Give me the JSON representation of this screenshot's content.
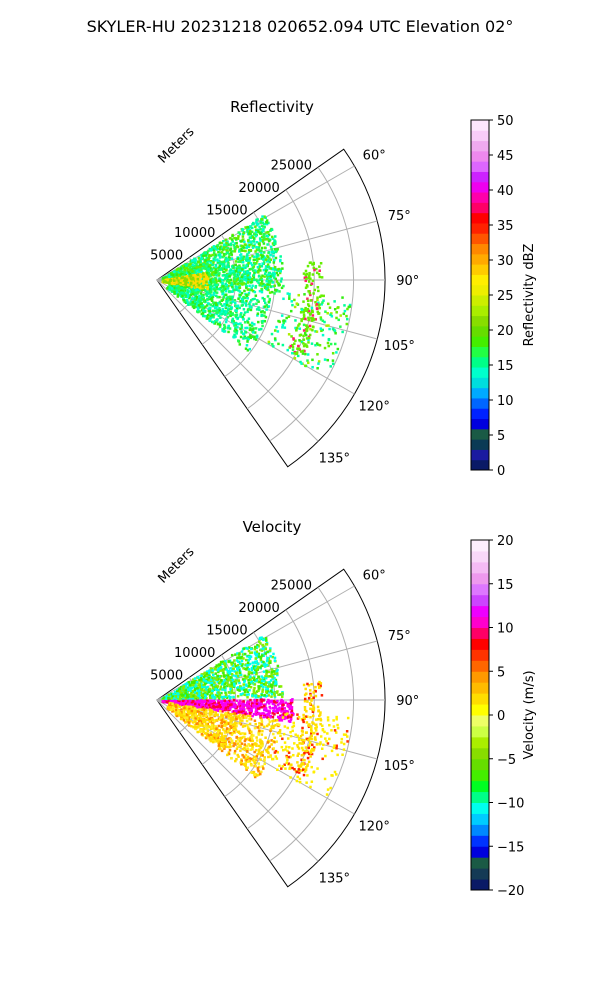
{
  "suptitle": "SKYLER-HU  20231218  020652.094 UTC Elevation 02°",
  "chart_data": [
    {
      "type": "heatmap",
      "projection": "polar-sector",
      "title": "Reflectivity",
      "radial_label": "Meters",
      "radial_ticks": [
        "5000",
        "10000",
        "15000",
        "20000",
        "25000"
      ],
      "radial_values": [
        5000,
        10000,
        15000,
        20000,
        25000
      ],
      "rmax": 29000,
      "azimuth_ticks": [
        "60°",
        "75°",
        "90°",
        "105°",
        "120°",
        "135°"
      ],
      "azimuth_values": [
        60,
        75,
        90,
        105,
        120,
        135
      ],
      "azimuth_range": [
        55,
        145
      ],
      "grid": true,
      "colorbar": {
        "label": "Reflectivity dBZ",
        "ticks": [
          "0",
          "5",
          "10",
          "15",
          "20",
          "25",
          "30",
          "35",
          "40",
          "45",
          "50"
        ],
        "range": [
          0,
          50
        ],
        "colors": [
          "#0a1a66",
          "#1a1aa0",
          "#0a3a55",
          "#1a5a45",
          "#0000dd",
          "#0022ff",
          "#0066ff",
          "#00aaff",
          "#00dddd",
          "#00ffcc",
          "#00ff88",
          "#22ff44",
          "#44ee00",
          "#66dd00",
          "#88dd00",
          "#aaee00",
          "#ccee00",
          "#eeee00",
          "#ffee00",
          "#ffcc00",
          "#ffaa00",
          "#ff8800",
          "#ff5500",
          "#ff2200",
          "#ff0000",
          "#ff0066",
          "#ff00aa",
          "#ee00ee",
          "#cc22ff",
          "#dd66ff",
          "#ee88ee",
          "#f0aaf0",
          "#f8ccf8",
          "#fde6fd"
        ]
      }
    },
    {
      "type": "heatmap",
      "projection": "polar-sector",
      "title": "Velocity",
      "radial_label": "Meters",
      "radial_ticks": [
        "5000",
        "10000",
        "15000",
        "20000",
        "25000"
      ],
      "radial_values": [
        5000,
        10000,
        15000,
        20000,
        25000
      ],
      "rmax": 29000,
      "azimuth_ticks": [
        "60°",
        "75°",
        "90°",
        "105°",
        "120°",
        "135°"
      ],
      "azimuth_values": [
        60,
        75,
        90,
        105,
        120,
        135
      ],
      "azimuth_range": [
        55,
        145
      ],
      "grid": true,
      "colorbar": {
        "label": "Velocity (m/s)",
        "ticks": [
          "−20",
          "−15",
          "−10",
          "−5",
          "0",
          "5",
          "10",
          "15",
          "20"
        ],
        "range": [
          -20,
          20
        ],
        "colors": [
          "#0a1a66",
          "#153a55",
          "#1a5a45",
          "#0000dd",
          "#0033ff",
          "#0088ff",
          "#00ccff",
          "#00ffee",
          "#00ff88",
          "#00ff22",
          "#44ee00",
          "#66dd00",
          "#88dd00",
          "#aaee00",
          "#ccff44",
          "#eeff66",
          "#ffff00",
          "#ffdd00",
          "#ffbb00",
          "#ff9900",
          "#ff6600",
          "#ff3300",
          "#ff0000",
          "#ff0066",
          "#ff00cc",
          "#ee00ff",
          "#cc44ff",
          "#dd77ff",
          "#ee99ee",
          "#f4bbf4",
          "#f8d8f8",
          "#fdeefd"
        ]
      }
    }
  ]
}
